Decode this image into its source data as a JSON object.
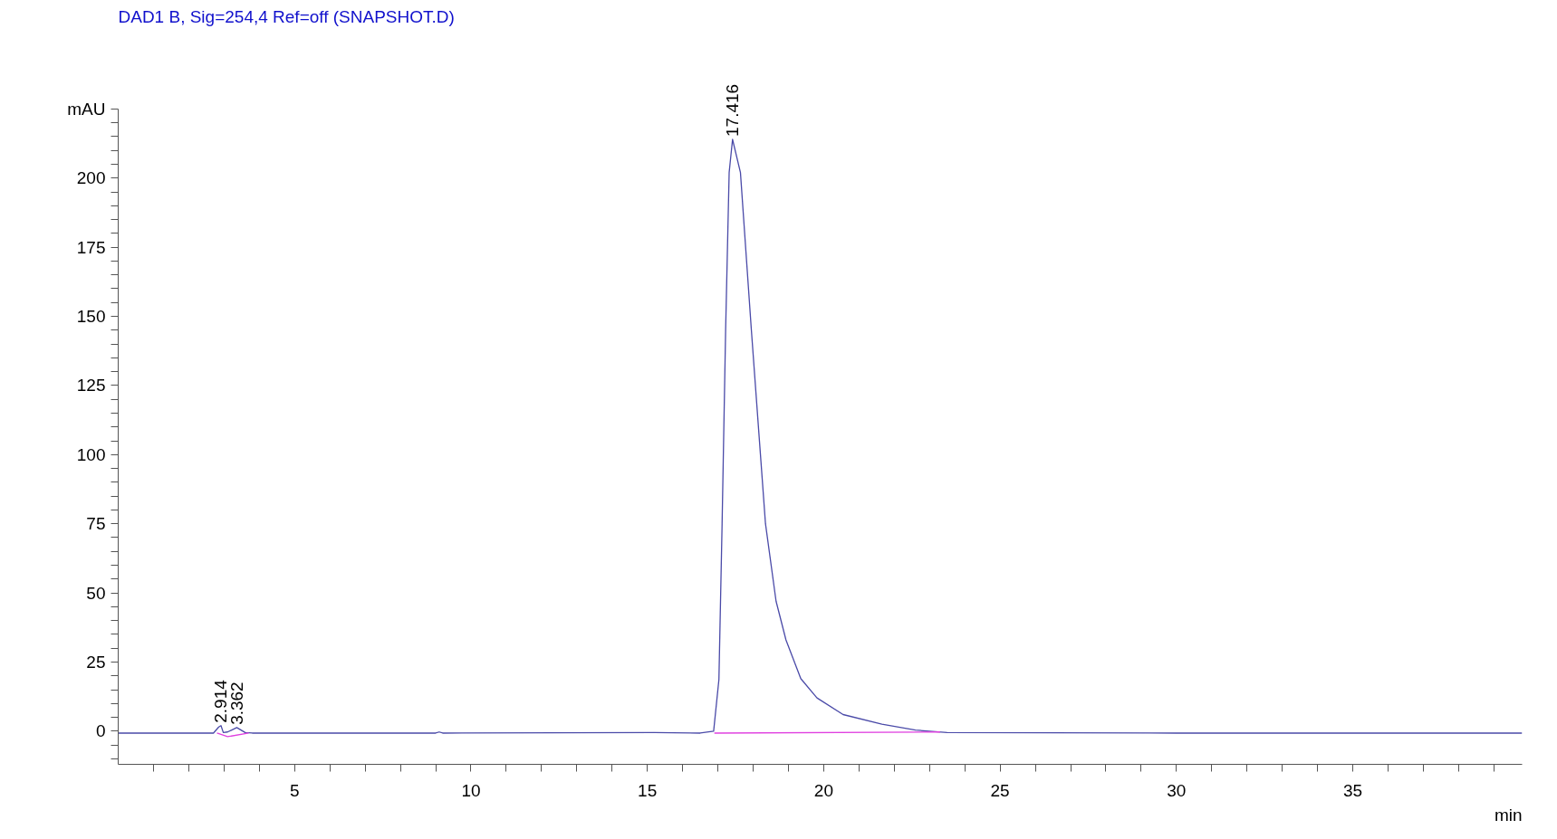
{
  "chart_data": {
    "type": "line",
    "title": "DAD1 B, Sig=254,4 Ref=off (SNAPSHOT.D)",
    "xlabel": "min",
    "series": [
      {
        "color": "#4a4aa8",
        "x": [
          0,
          2.7,
          2.85,
          2.914,
          2.98,
          3.1,
          3.362,
          3.6,
          3.8,
          9.0,
          9.1,
          9.2,
          15.2,
          16.5,
          16.88,
          17.03,
          17.12,
          17.22,
          17.32,
          17.416,
          17.64,
          17.95,
          18.35,
          18.65,
          18.93,
          19.35,
          19.81,
          20.55,
          21.65,
          22.6,
          23.5,
          30,
          39.8
        ],
        "values": [
          -0.7,
          -0.7,
          1.5,
          2.0,
          -0.5,
          -0.3,
          1.3,
          -0.5,
          -0.7,
          -0.7,
          -0.3,
          -0.7,
          -0.5,
          -0.7,
          0,
          18.7,
          75,
          145,
          202,
          214,
          202,
          145,
          75,
          47,
          33,
          19,
          12,
          6,
          2.5,
          0.4,
          -0.5,
          -0.7,
          -0.7
        ]
      },
      {
        "color": "#e040e0",
        "x": [
          2.8,
          3.1,
          3.7
        ],
        "values": [
          -0.7,
          -2.0,
          -0.7
        ]
      },
      {
        "color": "#e040e0",
        "x": [
          16.9,
          23.3
        ],
        "values": [
          -0.7,
          -0.3
        ]
      }
    ],
    "annotations": [
      {
        "text": "2.914",
        "x": 2.914,
        "y": 2.0
      },
      {
        "text": "3.362",
        "x": 3.362,
        "y": 1.3
      },
      {
        "text": "17.416",
        "x": 17.416,
        "y": 214
      }
    ],
    "xlim": [
      0,
      39.8
    ],
    "ylim": [
      -12,
      225
    ],
    "xticks": [
      {
        "value": 1,
        "label": null
      },
      {
        "value": 2,
        "label": null
      },
      {
        "value": 3,
        "label": null
      },
      {
        "value": 4,
        "label": null
      },
      5,
      {
        "value": 6,
        "label": null
      },
      {
        "value": 7,
        "label": null
      },
      {
        "value": 8,
        "label": null
      },
      {
        "value": 9,
        "label": null
      },
      10,
      {
        "value": 11,
        "label": null
      },
      {
        "value": 12,
        "label": null
      },
      {
        "value": 13,
        "label": null
      },
      {
        "value": 14,
        "label": null
      },
      15,
      {
        "value": 16,
        "label": null
      },
      {
        "value": 17,
        "label": null
      },
      {
        "value": 18,
        "label": null
      },
      {
        "value": 19,
        "label": null
      },
      20,
      {
        "value": 21,
        "label": null
      },
      {
        "value": 22,
        "label": null
      },
      {
        "value": 23,
        "label": null
      },
      {
        "value": 24,
        "label": null
      },
      25,
      {
        "value": 26,
        "label": null
      },
      {
        "value": 27,
        "label": null
      },
      {
        "value": 28,
        "label": null
      },
      {
        "value": 29,
        "label": null
      },
      30,
      {
        "value": 31,
        "label": null
      },
      {
        "value": 32,
        "label": null
      },
      {
        "value": 33,
        "label": null
      },
      {
        "value": 34,
        "label": null
      },
      35,
      {
        "value": 36,
        "label": null
      },
      {
        "value": 37,
        "label": null
      },
      {
        "value": 38,
        "label": null
      },
      {
        "value": 39,
        "label": null
      }
    ],
    "yticks": [
      {
        "value": -10,
        "label": null
      },
      {
        "value": -5,
        "label": null
      },
      0,
      {
        "value": 5,
        "label": null
      },
      {
        "value": 10,
        "label": null
      },
      {
        "value": 15,
        "label": null
      },
      {
        "value": 20,
        "label": null
      },
      25,
      {
        "value": 30,
        "label": null
      },
      {
        "value": 35,
        "label": null
      },
      {
        "value": 40,
        "label": null
      },
      {
        "value": 45,
        "label": null
      },
      50,
      {
        "value": 55,
        "label": null
      },
      {
        "value": 60,
        "label": null
      },
      {
        "value": 65,
        "label": null
      },
      {
        "value": 70,
        "label": null
      },
      75,
      {
        "value": 80,
        "label": null
      },
      {
        "value": 85,
        "label": null
      },
      {
        "value": 90,
        "label": null
      },
      {
        "value": 95,
        "label": null
      },
      100,
      {
        "value": 105,
        "label": null
      },
      {
        "value": 110,
        "label": null
      },
      {
        "value": 115,
        "label": null
      },
      {
        "value": 120,
        "label": null
      },
      125,
      {
        "value": 130,
        "label": null
      },
      {
        "value": 135,
        "label": null
      },
      {
        "value": 140,
        "label": null
      },
      {
        "value": 145,
        "label": null
      },
      150,
      {
        "value": 155,
        "label": null
      },
      {
        "value": 160,
        "label": null
      },
      {
        "value": 165,
        "label": null
      },
      {
        "value": 170,
        "label": null
      },
      175,
      {
        "value": 180,
        "label": null
      },
      {
        "value": 185,
        "label": null
      },
      {
        "value": 190,
        "label": null
      },
      {
        "value": 195,
        "label": null
      },
      200,
      {
        "value": 205,
        "label": null
      },
      {
        "value": 210,
        "label": null
      },
      {
        "value": 215,
        "label": null
      },
      {
        "value": 220,
        "label": null
      },
      {
        "value": 225,
        "label": "mAU"
      }
    ]
  }
}
